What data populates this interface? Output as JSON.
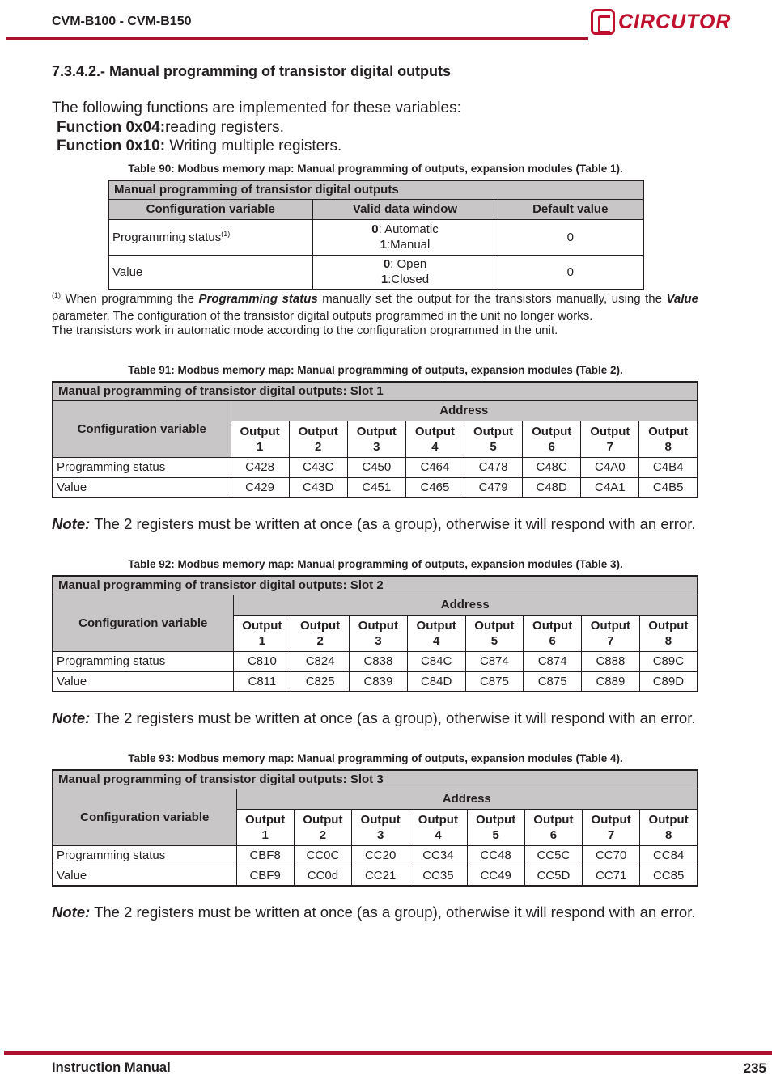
{
  "header": {
    "title": "CVM-B100 - CVM-B150",
    "logo_text": "CIRCUTOR",
    "accent": "#ae1030"
  },
  "section": {
    "heading": "7.3.4.2.- Manual programming of transistor digital outputs",
    "intro": "The following functions are implemented for these variables:",
    "f1_label": "Function 0x04:",
    "f1_text": "reading registers.",
    "f2_label": "Function 0x10:",
    "f2_text": " Writing multiple registers."
  },
  "table90": {
    "caption": "Table 90:  Modbus memory map: Manual programming of outputs, expansion modules (Table 1).",
    "title": "Manual programming of transistor digital outputs",
    "headers": [
      "Configuration variable",
      "Valid data window",
      "Default value"
    ],
    "rows": [
      {
        "var": "Programming status",
        "sup": "(1)",
        "w0b": "0",
        "w0": ": Automatic",
        "w1b": "1",
        "w1": ":Manual",
        "def": "0"
      },
      {
        "var": "Value",
        "sup": "",
        "w0b": "0",
        "w0": ": Open",
        "w1b": "1",
        "w1": ":Closed",
        "def": "0"
      }
    ]
  },
  "footnote": {
    "mark": "(1)",
    "t1": " When programming the ",
    "b1": "Programming status",
    "t2": " manually set the output for the transistors manually, using the ",
    "b2": "Value",
    "t3": " parameter. The configuration of the transistor digital outputs programmed in the unit no longer works.",
    "line3": "The transistors work in automatic mode according to the configuration programmed in the unit."
  },
  "slot_tables": [
    {
      "caption": "Table 91: Modbus memory map: Manual programming of outputs, expansion modules (Table 2).",
      "title": "Manual programming of transistor digital outputs: Slot 1",
      "config_label": "Configuration variable",
      "address_label": "Address",
      "outputs": [
        "Output\n1",
        "Output\n2",
        "Output\n3",
        "Output\n4",
        "Output\n5",
        "Output\n6",
        "Output\n7",
        "Output\n8"
      ],
      "rows": [
        {
          "label": "Programming status",
          "values": [
            "C428",
            "C43C",
            "C450",
            "C464",
            "C478",
            "C48C",
            "C4A0",
            "C4B4"
          ]
        },
        {
          "label": "Value",
          "values": [
            "C429",
            "C43D",
            "C451",
            "C465",
            "C479",
            "C48D",
            "C4A1",
            "C4B5"
          ]
        }
      ]
    },
    {
      "caption": "Table 92: Modbus memory map: Manual programming of outputs, expansion modules (Table 3).",
      "title": "Manual programming of transistor digital outputs: Slot 2",
      "config_label": "Configuration variable",
      "address_label": "Address",
      "outputs": [
        "Output\n1",
        "Output\n2",
        "Output\n3",
        "Output\n4",
        "Output\n5",
        "Output\n6",
        "Output\n7",
        "Output\n8"
      ],
      "rows": [
        {
          "label": "Programming status",
          "values": [
            "C810",
            "C824",
            "C838",
            "C84C",
            "C874",
            "C874",
            "C888",
            "C89C"
          ]
        },
        {
          "label": "Value",
          "values": [
            "C811",
            "C825",
            "C839",
            "C84D",
            "C875",
            "C875",
            "C889",
            "C89D"
          ]
        }
      ]
    },
    {
      "caption": "Table 93: Modbus memory map: Manual programming of outputs, expansion modules (Table 4).",
      "title": "Manual programming of transistor digital outputs: Slot 3",
      "config_label": "Configuration variable",
      "address_label": "Address",
      "outputs": [
        "Output\n1",
        "Output\n2",
        "Output\n3",
        "Output\n4",
        "Output\n5",
        "Output\n6",
        "Output\n7",
        "Output\n8"
      ],
      "rows": [
        {
          "label": "Programming status",
          "values": [
            "CBF8",
            "CC0C",
            "CC20",
            "CC34",
            "CC48",
            "CC5C",
            "CC70",
            "CC84"
          ]
        },
        {
          "label": "Value",
          "values": [
            "CBF9",
            "CC0d",
            "CC21",
            "CC35",
            "CC49",
            "CC5D",
            "CC71",
            "CC85"
          ]
        }
      ]
    }
  ],
  "note": {
    "label": "Note:",
    "text": " The 2 registers must be written at once (as a group), otherwise it will respond with an error."
  },
  "footer": {
    "label": "Instruction Manual",
    "page": "235"
  }
}
